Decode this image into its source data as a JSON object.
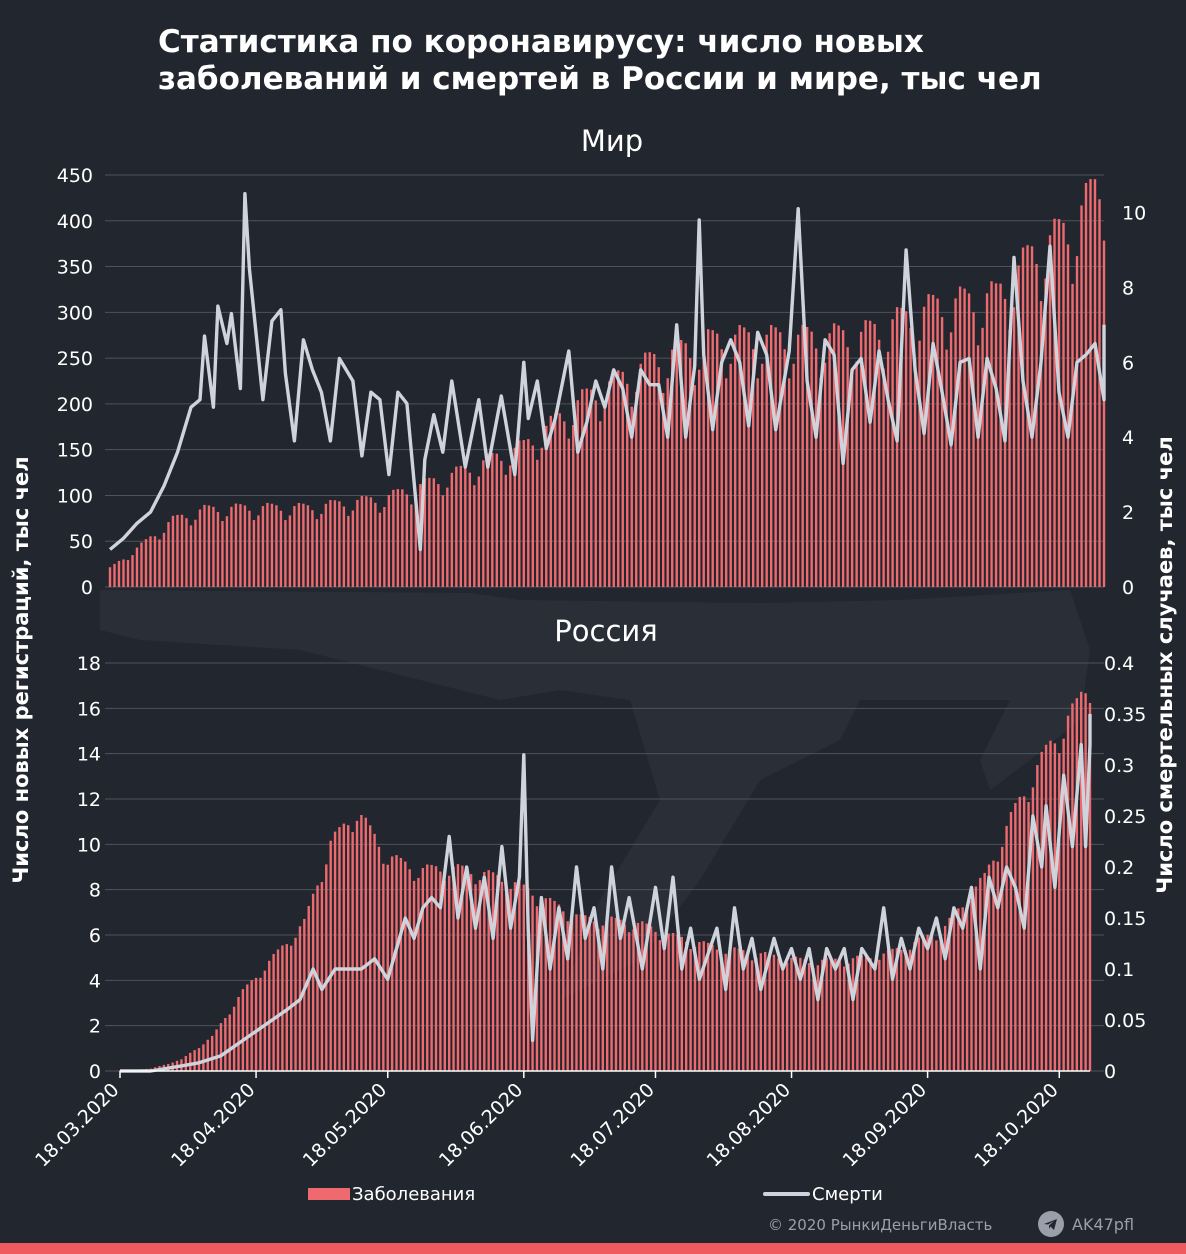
{
  "title": "Статистика по коронавирусу: число новых заболеваний и смертей в России и мире, тыс чел",
  "colors": {
    "background": "#22262e",
    "bars": "#ee6a6e",
    "line": "#cfd3dc",
    "grid": "#4d525c",
    "text": "#ffffff",
    "muted": "#9aa0aa",
    "accent_bar": "#ee5a5e"
  },
  "footer": {
    "copyright": "© 2020  РынкиДеньгиВласть",
    "telegram_icon": "telegram-icon",
    "telegram": "AK47pfl"
  },
  "chart_data": {
    "type": "bar+line",
    "x_range": [
      "18.03.2020",
      "25.10.2020"
    ],
    "x_ticks": [
      "18.03.2020",
      "18.04.2020",
      "18.05.2020",
      "18.06.2020",
      "18.07.2020",
      "18.08.2020",
      "18.09.2020",
      "18.10.2020"
    ],
    "ylabel_left": "Число новых регистраций, тыс чел",
    "ylabel_right": "Число смертельных случаев, тыс чел",
    "legend": {
      "bars": "Заболевания",
      "line": "Смерти",
      "placement": "bottom"
    },
    "panels": [
      {
        "title": "Мир",
        "y_left": {
          "range": [
            0,
            450
          ],
          "ticks": [
            0,
            50,
            100,
            150,
            200,
            250,
            300,
            350,
            400,
            450
          ]
        },
        "y_right": {
          "range": [
            0,
            11
          ],
          "ticks": [
            0,
            2,
            4,
            6,
            8,
            10
          ]
        },
        "cases_keypoints": [
          [
            "18.03.2020",
            20
          ],
          [
            "25.03.2020",
            45
          ],
          [
            "01.04.2020",
            72
          ],
          [
            "08.04.2020",
            83
          ],
          [
            "18.04.2020",
            85
          ],
          [
            "01.05.2020",
            85
          ],
          [
            "18.05.2020",
            95
          ],
          [
            "01.06.2020",
            118
          ],
          [
            "18.06.2020",
            150
          ],
          [
            "01.07.2020",
            200
          ],
          [
            "18.07.2020",
            245
          ],
          [
            "01.08.2020",
            265
          ],
          [
            "18.08.2020",
            265
          ],
          [
            "01.09.2020",
            268
          ],
          [
            "18.09.2020",
            300
          ],
          [
            "01.10.2020",
            310
          ],
          [
            "10.10.2020",
            360
          ],
          [
            "18.10.2020",
            385
          ],
          [
            "25.10.2020",
            440
          ]
        ],
        "deaths_keypoints": [
          [
            "18.03.2020",
            1.0
          ],
          [
            "21.03.2020",
            1.3
          ],
          [
            "24.03.2020",
            1.7
          ],
          [
            "27.03.2020",
            2.0
          ],
          [
            "30.03.2020",
            2.7
          ],
          [
            "02.04.2020",
            3.6
          ],
          [
            "05.04.2020",
            4.8
          ],
          [
            "07.04.2020",
            5.0
          ],
          [
            "08.04.2020",
            6.7
          ],
          [
            "10.04.2020",
            4.8
          ],
          [
            "11.04.2020",
            7.5
          ],
          [
            "13.04.2020",
            6.5
          ],
          [
            "14.04.2020",
            7.3
          ],
          [
            "16.04.2020",
            5.3
          ],
          [
            "17.04.2020",
            10.5
          ],
          [
            "18.04.2020",
            8.5
          ],
          [
            "21.04.2020",
            5.0
          ],
          [
            "23.04.2020",
            7.1
          ],
          [
            "25.04.2020",
            7.4
          ],
          [
            "26.04.2020",
            5.7
          ],
          [
            "28.04.2020",
            3.9
          ],
          [
            "30.04.2020",
            6.6
          ],
          [
            "02.05.2020",
            5.8
          ],
          [
            "04.05.2020",
            5.2
          ],
          [
            "06.05.2020",
            3.9
          ],
          [
            "08.05.2020",
            6.1
          ],
          [
            "11.05.2020",
            5.5
          ],
          [
            "13.05.2020",
            3.5
          ],
          [
            "15.05.2020",
            5.2
          ],
          [
            "17.05.2020",
            5.0
          ],
          [
            "19.05.2020",
            3.0
          ],
          [
            "21.05.2020",
            5.2
          ],
          [
            "23.05.2020",
            4.9
          ],
          [
            "26.05.2020",
            1.0
          ],
          [
            "27.05.2020",
            3.4
          ],
          [
            "29.05.2020",
            4.6
          ],
          [
            "31.05.2020",
            3.6
          ],
          [
            "02.06.2020",
            5.5
          ],
          [
            "05.06.2020",
            3.2
          ],
          [
            "08.06.2020",
            5.0
          ],
          [
            "10.06.2020",
            3.2
          ],
          [
            "13.06.2020",
            5.1
          ],
          [
            "16.06.2020",
            3.0
          ],
          [
            "18.06.2020",
            6.0
          ],
          [
            "19.06.2020",
            4.5
          ],
          [
            "21.06.2020",
            5.5
          ],
          [
            "23.06.2020",
            3.7
          ],
          [
            "25.06.2020",
            4.5
          ],
          [
            "28.06.2020",
            6.3
          ],
          [
            "30.06.2020",
            3.6
          ],
          [
            "02.07.2020",
            4.4
          ],
          [
            "04.07.2020",
            5.5
          ],
          [
            "06.07.2020",
            4.8
          ],
          [
            "08.07.2020",
            5.8
          ],
          [
            "10.07.2020",
            5.3
          ],
          [
            "12.07.2020",
            4.0
          ],
          [
            "14.07.2020",
            5.8
          ],
          [
            "16.07.2020",
            5.4
          ],
          [
            "18.07.2020",
            5.4
          ],
          [
            "20.07.2020",
            4.0
          ],
          [
            "22.07.2020",
            7.0
          ],
          [
            "24.07.2020",
            4.0
          ],
          [
            "26.07.2020",
            5.9
          ],
          [
            "27.07.2020",
            9.8
          ],
          [
            "28.07.2020",
            6.2
          ],
          [
            "30.07.2020",
            4.2
          ],
          [
            "01.08.2020",
            6.0
          ],
          [
            "03.08.2020",
            6.6
          ],
          [
            "05.08.2020",
            6.0
          ],
          [
            "07.08.2020",
            4.3
          ],
          [
            "09.08.2020",
            6.8
          ],
          [
            "11.08.2020",
            6.2
          ],
          [
            "13.08.2020",
            4.2
          ],
          [
            "16.08.2020",
            6.3
          ],
          [
            "18.08.2020",
            10.1
          ],
          [
            "20.08.2020",
            5.5
          ],
          [
            "22.08.2020",
            4.0
          ],
          [
            "24.08.2020",
            6.6
          ],
          [
            "26.08.2020",
            6.2
          ],
          [
            "28.08.2020",
            3.3
          ],
          [
            "30.08.2020",
            5.8
          ],
          [
            "01.09.2020",
            6.1
          ],
          [
            "03.09.2020",
            4.4
          ],
          [
            "05.09.2020",
            6.3
          ],
          [
            "07.09.2020",
            5.0
          ],
          [
            "09.09.2020",
            3.9
          ],
          [
            "11.09.2020",
            9.0
          ],
          [
            "13.09.2020",
            5.8
          ],
          [
            "15.09.2020",
            4.1
          ],
          [
            "17.09.2020",
            6.5
          ],
          [
            "19.09.2020",
            5.2
          ],
          [
            "21.09.2020",
            3.8
          ],
          [
            "23.09.2020",
            6.0
          ],
          [
            "25.09.2020",
            6.1
          ],
          [
            "27.09.2020",
            4.0
          ],
          [
            "29.09.2020",
            6.1
          ],
          [
            "01.10.2020",
            5.3
          ],
          [
            "03.10.2020",
            3.9
          ],
          [
            "05.10.2020",
            8.8
          ],
          [
            "07.10.2020",
            5.5
          ],
          [
            "09.10.2020",
            4.0
          ],
          [
            "11.10.2020",
            6.0
          ],
          [
            "13.10.2020",
            9.1
          ],
          [
            "15.10.2020",
            5.2
          ],
          [
            "17.10.2020",
            4.0
          ],
          [
            "19.10.2020",
            6.0
          ],
          [
            "21.10.2020",
            6.2
          ],
          [
            "23.10.2020",
            6.5
          ],
          [
            "25.10.2020",
            5.0
          ],
          [
            "26.10.2020",
            6.5
          ],
          [
            "27.10.2020",
            7.0
          ]
        ]
      },
      {
        "title": "Россия",
        "y_left": {
          "range": [
            0,
            18
          ],
          "ticks": [
            0,
            2,
            4,
            6,
            8,
            10,
            12,
            14,
            16,
            18
          ]
        },
        "y_right": {
          "range": [
            0,
            0.4
          ],
          "ticks": [
            0,
            0.05,
            0.1,
            0.15,
            0.2,
            0.25,
            0.3,
            0.35,
            0.4
          ]
        },
        "cases_keypoints": [
          [
            "18.03.2020",
            0.03
          ],
          [
            "25.03.2020",
            0.1
          ],
          [
            "01.04.2020",
            0.5
          ],
          [
            "08.04.2020",
            1.5
          ],
          [
            "15.04.2020",
            3.5
          ],
          [
            "22.04.2020",
            5.0
          ],
          [
            "29.04.2020",
            6.5
          ],
          [
            "05.05.2020",
            10.0
          ],
          [
            "11.05.2020",
            11.4
          ],
          [
            "18.05.2020",
            9.4
          ],
          [
            "25.05.2020",
            8.8
          ],
          [
            "01.06.2020",
            8.9
          ],
          [
            "08.06.2020",
            8.7
          ],
          [
            "15.06.2020",
            8.3
          ],
          [
            "22.06.2020",
            7.6
          ],
          [
            "01.07.2020",
            6.7
          ],
          [
            "08.07.2020",
            6.6
          ],
          [
            "15.07.2020",
            6.4
          ],
          [
            "22.07.2020",
            5.9
          ],
          [
            "01.08.2020",
            5.4
          ],
          [
            "08.08.2020",
            5.2
          ],
          [
            "15.08.2020",
            5.0
          ],
          [
            "22.08.2020",
            4.8
          ],
          [
            "01.09.2020",
            4.9
          ],
          [
            "08.09.2020",
            5.1
          ],
          [
            "15.09.2020",
            5.6
          ],
          [
            "22.09.2020",
            6.3
          ],
          [
            "01.10.2020",
            8.5
          ],
          [
            "08.10.2020",
            11.5
          ],
          [
            "15.10.2020",
            14.0
          ],
          [
            "22.10.2020",
            16.0
          ],
          [
            "25.10.2020",
            17.2
          ]
        ],
        "deaths_keypoints": [
          [
            "18.03.2020",
            0.0
          ],
          [
            "25.03.2020",
            0.0
          ],
          [
            "01.04.2020",
            0.005
          ],
          [
            "05.04.2020",
            0.008
          ],
          [
            "10.04.2020",
            0.015
          ],
          [
            "15.04.2020",
            0.03
          ],
          [
            "20.04.2020",
            0.045
          ],
          [
            "25.04.2020",
            0.06
          ],
          [
            "28.04.2020",
            0.07
          ],
          [
            "01.05.2020",
            0.1
          ],
          [
            "03.05.2020",
            0.08
          ],
          [
            "06.05.2020",
            0.1
          ],
          [
            "09.05.2020",
            0.1
          ],
          [
            "12.05.2020",
            0.1
          ],
          [
            "15.05.2020",
            0.11
          ],
          [
            "18.05.2020",
            0.09
          ],
          [
            "20.05.2020",
            0.12
          ],
          [
            "22.05.2020",
            0.15
          ],
          [
            "24.05.2020",
            0.13
          ],
          [
            "26.05.2020",
            0.16
          ],
          [
            "28.05.2020",
            0.17
          ],
          [
            "30.05.2020",
            0.16
          ],
          [
            "01.06.2020",
            0.23
          ],
          [
            "03.06.2020",
            0.15
          ],
          [
            "05.06.2020",
            0.2
          ],
          [
            "07.06.2020",
            0.14
          ],
          [
            "09.06.2020",
            0.19
          ],
          [
            "11.06.2020",
            0.13
          ],
          [
            "13.06.2020",
            0.22
          ],
          [
            "15.06.2020",
            0.14
          ],
          [
            "17.06.2020",
            0.19
          ],
          [
            "18.06.2020",
            0.31
          ],
          [
            "19.06.2020",
            0.14
          ],
          [
            "20.06.2020",
            0.03
          ],
          [
            "22.06.2020",
            0.17
          ],
          [
            "24.06.2020",
            0.1
          ],
          [
            "26.06.2020",
            0.16
          ],
          [
            "28.06.2020",
            0.11
          ],
          [
            "30.06.2020",
            0.2
          ],
          [
            "02.07.2020",
            0.13
          ],
          [
            "04.07.2020",
            0.16
          ],
          [
            "06.07.2020",
            0.1
          ],
          [
            "08.07.2020",
            0.2
          ],
          [
            "10.07.2020",
            0.13
          ],
          [
            "12.07.2020",
            0.17
          ],
          [
            "15.07.2020",
            0.1
          ],
          [
            "18.07.2020",
            0.18
          ],
          [
            "20.07.2020",
            0.12
          ],
          [
            "22.07.2020",
            0.19
          ],
          [
            "24.07.2020",
            0.1
          ],
          [
            "26.07.2020",
            0.14
          ],
          [
            "28.07.2020",
            0.09
          ],
          [
            "01.08.2020",
            0.14
          ],
          [
            "03.08.2020",
            0.08
          ],
          [
            "05.08.2020",
            0.16
          ],
          [
            "07.08.2020",
            0.1
          ],
          [
            "09.08.2020",
            0.13
          ],
          [
            "11.08.2020",
            0.08
          ],
          [
            "14.08.2020",
            0.13
          ],
          [
            "16.08.2020",
            0.1
          ],
          [
            "18.08.2020",
            0.12
          ],
          [
            "20.08.2020",
            0.09
          ],
          [
            "22.08.2020",
            0.12
          ],
          [
            "24.08.2020",
            0.07
          ],
          [
            "26.08.2020",
            0.12
          ],
          [
            "28.08.2020",
            0.1
          ],
          [
            "30.08.2020",
            0.12
          ],
          [
            "01.09.2020",
            0.07
          ],
          [
            "03.09.2020",
            0.12
          ],
          [
            "06.09.2020",
            0.1
          ],
          [
            "08.09.2020",
            0.16
          ],
          [
            "10.09.2020",
            0.09
          ],
          [
            "12.09.2020",
            0.13
          ],
          [
            "14.09.2020",
            0.1
          ],
          [
            "16.09.2020",
            0.14
          ],
          [
            "18.09.2020",
            0.12
          ],
          [
            "20.09.2020",
            0.15
          ],
          [
            "22.09.2020",
            0.11
          ],
          [
            "24.09.2020",
            0.16
          ],
          [
            "26.09.2020",
            0.14
          ],
          [
            "28.09.2020",
            0.18
          ],
          [
            "30.09.2020",
            0.1
          ],
          [
            "02.10.2020",
            0.19
          ],
          [
            "04.10.2020",
            0.16
          ],
          [
            "06.10.2020",
            0.2
          ],
          [
            "08.10.2020",
            0.18
          ],
          [
            "10.10.2020",
            0.14
          ],
          [
            "12.10.2020",
            0.25
          ],
          [
            "14.10.2020",
            0.2
          ],
          [
            "15.10.2020",
            0.26
          ],
          [
            "17.10.2020",
            0.18
          ],
          [
            "19.10.2020",
            0.29
          ],
          [
            "21.10.2020",
            0.22
          ],
          [
            "23.10.2020",
            0.32
          ],
          [
            "24.10.2020",
            0.22
          ],
          [
            "26.10.2020",
            0.32
          ],
          [
            "27.10.2020",
            0.35
          ]
        ]
      }
    ]
  }
}
